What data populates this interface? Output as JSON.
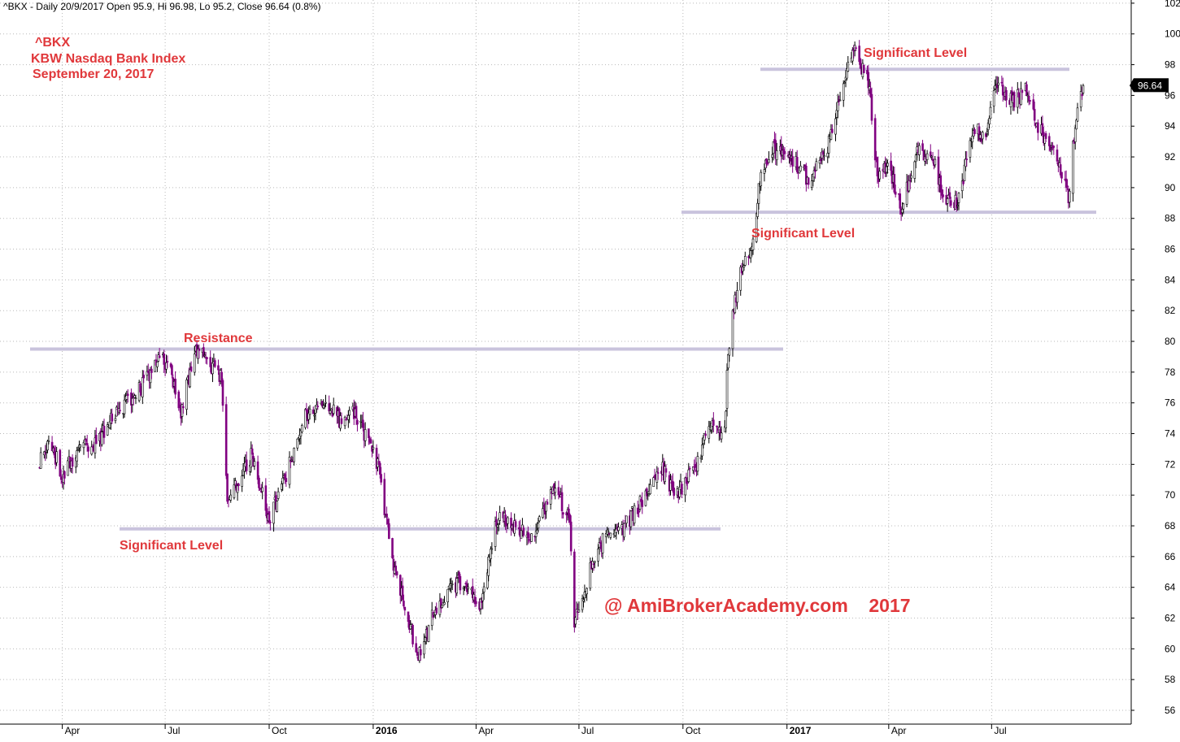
{
  "chart_data": {
    "type": "candlestick",
    "symbol": "^BKX",
    "header": "^BKX - Daily 20/9/2017 Open 95.9, Hi 96.98, Lo 95.2, Close 96.64 (0.8%)",
    "title_lines": [
      "^BKX",
      "KBW Nasdaq Bank Index",
      "September 20, 2017"
    ],
    "watermark": "@ AmiBrokerAcademy.com    2017",
    "last_close_label": "96.64",
    "last_close": 96.64,
    "ylim": [
      55,
      103
    ],
    "y_ticks": [
      56,
      58,
      60,
      62,
      64,
      66,
      68,
      70,
      72,
      74,
      76,
      78,
      80,
      82,
      84,
      86,
      88,
      90,
      92,
      94,
      96,
      98,
      100,
      102
    ],
    "x_ticks": [
      {
        "label": "Apr",
        "bold": false
      },
      {
        "label": "Jul",
        "bold": false
      },
      {
        "label": "Oct",
        "bold": false
      },
      {
        "label": "2016",
        "bold": true
      },
      {
        "label": "Apr",
        "bold": false
      },
      {
        "label": "Jul",
        "bold": false
      },
      {
        "label": "Oct",
        "bold": false
      },
      {
        "label": "2017",
        "bold": true
      },
      {
        "label": "Apr",
        "bold": false
      },
      {
        "label": "Jul",
        "bold": false
      }
    ],
    "grid": true,
    "levels": [
      {
        "label": "Resistance",
        "value": 79.5
      },
      {
        "label": "Significant Level",
        "value": 67.8
      },
      {
        "label": "Significant Level",
        "value": 97.7
      },
      {
        "label": "Significant Level",
        "value": 88.4
      }
    ],
    "colors": {
      "up": "#000000",
      "down": "#800080",
      "level": "#c9c3dd",
      "annotation": "#e0383b",
      "grid": "#b9b9b9"
    },
    "anchors": [
      {
        "date": "2015-03-12",
        "close": 72.0
      },
      {
        "date": "2015-03-20",
        "close": 73.8
      },
      {
        "date": "2015-04-01",
        "close": 71.2
      },
      {
        "date": "2015-04-15",
        "close": 73.0
      },
      {
        "date": "2015-05-01",
        "close": 73.3
      },
      {
        "date": "2015-05-20",
        "close": 75.5
      },
      {
        "date": "2015-06-10",
        "close": 77.0
      },
      {
        "date": "2015-06-25",
        "close": 79.0
      },
      {
        "date": "2015-07-05",
        "close": 78.2
      },
      {
        "date": "2015-07-15",
        "close": 75.5
      },
      {
        "date": "2015-07-28",
        "close": 79.6
      },
      {
        "date": "2015-08-10",
        "close": 78.5
      },
      {
        "date": "2015-08-20",
        "close": 77.5
      },
      {
        "date": "2015-08-25",
        "close": 69.5
      },
      {
        "date": "2015-09-05",
        "close": 71.0
      },
      {
        "date": "2015-09-15",
        "close": 72.5
      },
      {
        "date": "2015-10-01",
        "close": 68.5
      },
      {
        "date": "2015-10-15",
        "close": 71.0
      },
      {
        "date": "2015-11-01",
        "close": 75.0
      },
      {
        "date": "2015-11-20",
        "close": 76.3
      },
      {
        "date": "2015-12-05",
        "close": 74.5
      },
      {
        "date": "2015-12-15",
        "close": 75.5
      },
      {
        "date": "2016-01-05",
        "close": 72.0
      },
      {
        "date": "2016-01-20",
        "close": 65.0
      },
      {
        "date": "2016-02-10",
        "close": 59.5
      },
      {
        "date": "2016-02-22",
        "close": 62.0
      },
      {
        "date": "2016-03-05",
        "close": 63.5
      },
      {
        "date": "2016-03-20",
        "close": 64.5
      },
      {
        "date": "2016-04-05",
        "close": 63.0
      },
      {
        "date": "2016-04-20",
        "close": 68.5
      },
      {
        "date": "2016-05-05",
        "close": 68.0
      },
      {
        "date": "2016-05-20",
        "close": 67.0
      },
      {
        "date": "2016-06-08",
        "close": 70.5
      },
      {
        "date": "2016-06-23",
        "close": 68.5
      },
      {
        "date": "2016-06-27",
        "close": 61.5
      },
      {
        "date": "2016-07-10",
        "close": 65.0
      },
      {
        "date": "2016-07-25",
        "close": 67.5
      },
      {
        "date": "2016-08-10",
        "close": 68.0
      },
      {
        "date": "2016-08-25",
        "close": 69.5
      },
      {
        "date": "2016-09-10",
        "close": 72.0
      },
      {
        "date": "2016-09-25",
        "close": 70.0
      },
      {
        "date": "2016-10-10",
        "close": 71.5
      },
      {
        "date": "2016-10-25",
        "close": 74.5
      },
      {
        "date": "2016-11-07",
        "close": 74.0
      },
      {
        "date": "2016-11-10",
        "close": 79.5
      },
      {
        "date": "2016-11-20",
        "close": 84.5
      },
      {
        "date": "2016-12-01",
        "close": 86.5
      },
      {
        "date": "2016-12-10",
        "close": 91.5
      },
      {
        "date": "2016-12-20",
        "close": 92.5
      },
      {
        "date": "2017-01-05",
        "close": 92.0
      },
      {
        "date": "2017-01-20",
        "close": 90.5
      },
      {
        "date": "2017-02-05",
        "close": 92.5
      },
      {
        "date": "2017-02-20",
        "close": 96.5
      },
      {
        "date": "2017-03-01",
        "close": 99.2
      },
      {
        "date": "2017-03-15",
        "close": 96.5
      },
      {
        "date": "2017-03-22",
        "close": 90.5
      },
      {
        "date": "2017-04-01",
        "close": 91.5
      },
      {
        "date": "2017-04-13",
        "close": 88.5
      },
      {
        "date": "2017-04-25",
        "close": 92.5
      },
      {
        "date": "2017-05-10",
        "close": 92.0
      },
      {
        "date": "2017-05-20",
        "close": 89.5
      },
      {
        "date": "2017-06-01",
        "close": 89.0
      },
      {
        "date": "2017-06-15",
        "close": 94.0
      },
      {
        "date": "2017-06-25",
        "close": 93.0
      },
      {
        "date": "2017-07-05",
        "close": 96.8
      },
      {
        "date": "2017-07-20",
        "close": 95.5
      },
      {
        "date": "2017-08-01",
        "close": 96.5
      },
      {
        "date": "2017-08-10",
        "close": 94.0
      },
      {
        "date": "2017-08-25",
        "close": 92.5
      },
      {
        "date": "2017-09-07",
        "close": 89.5
      },
      {
        "date": "2017-09-13",
        "close": 94.0
      },
      {
        "date": "2017-09-20",
        "close": 96.64
      }
    ]
  }
}
